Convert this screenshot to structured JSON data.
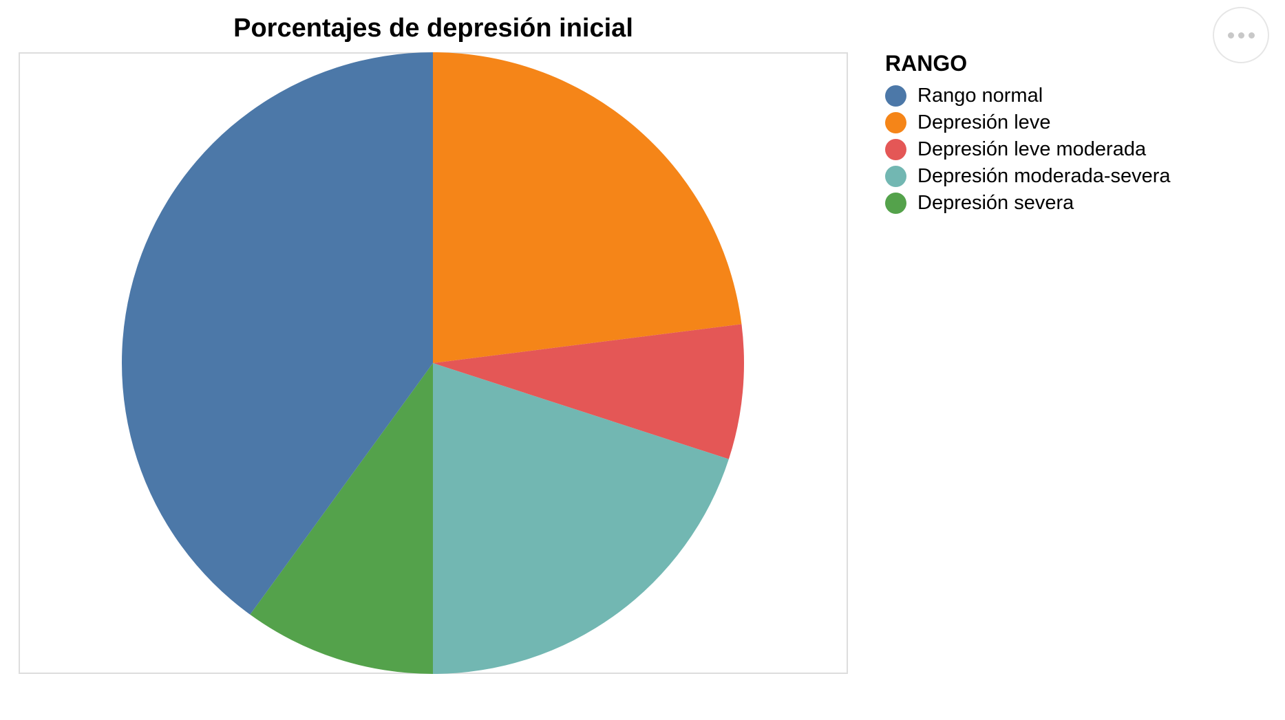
{
  "chart_data": {
    "type": "pie",
    "title": "Porcentajes de depresión inicial",
    "legend_title": "RANGO",
    "legend_position": "right",
    "start_angle_deg": 0,
    "direction": "clockwise",
    "categories": [
      "Rango normal",
      "Depresión leve",
      "Depresión leve moderada",
      "Depresión moderada-severa",
      "Depresión severa"
    ],
    "values": [
      40,
      23,
      7,
      20,
      10
    ],
    "colors": [
      "#4c78a8",
      "#f58518",
      "#e45756",
      "#72b7b2",
      "#54a24b"
    ],
    "slice_order": [
      1,
      2,
      3,
      4,
      0
    ]
  },
  "actions_menu": {
    "icon": "more-horizontal-icon"
  }
}
